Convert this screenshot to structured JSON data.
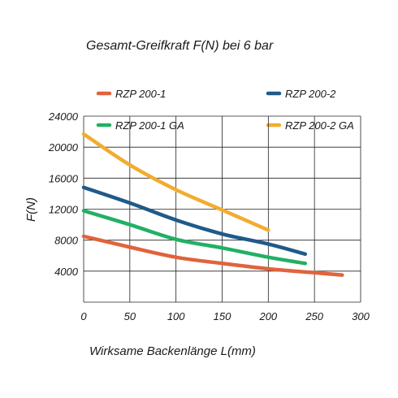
{
  "chart_data": {
    "type": "line",
    "title": "Gesamt-Greifkraft F(N) bei 6 bar",
    "xlabel": "Wirksame Backenlänge L(mm)",
    "ylabel": "F(N)",
    "xlim": [
      0,
      300
    ],
    "ylim": [
      0,
      24000
    ],
    "x_ticks": [
      "0",
      "50",
      "100",
      "150",
      "200",
      "250",
      "300"
    ],
    "y_ticks": [
      "4000",
      "8000",
      "12000",
      "16000",
      "20000",
      "24000"
    ],
    "grid": true,
    "legend_position": "top",
    "series": [
      {
        "name": "RZP 200-1",
        "color": "#e0633c",
        "points": [
          [
            0,
            8500
          ],
          [
            50,
            7100
          ],
          [
            100,
            5800
          ],
          [
            150,
            5000
          ],
          [
            200,
            4300
          ],
          [
            250,
            3800
          ],
          [
            280,
            3500
          ]
        ]
      },
      {
        "name": "RZP 200-2",
        "color": "#1f5a8a",
        "points": [
          [
            0,
            14800
          ],
          [
            50,
            12800
          ],
          [
            100,
            10600
          ],
          [
            150,
            8800
          ],
          [
            200,
            7500
          ],
          [
            240,
            6200
          ]
        ]
      },
      {
        "name": "RZP 200-1 GA",
        "color": "#22b064",
        "points": [
          [
            0,
            11800
          ],
          [
            50,
            10000
          ],
          [
            100,
            8100
          ],
          [
            150,
            7000
          ],
          [
            200,
            5800
          ],
          [
            240,
            5000
          ]
        ]
      },
      {
        "name": "RZP 200-2 GA",
        "color": "#f2ac2e",
        "points": [
          [
            0,
            21700
          ],
          [
            50,
            17700
          ],
          [
            100,
            14500
          ],
          [
            150,
            11900
          ],
          [
            200,
            9300
          ]
        ]
      }
    ]
  }
}
